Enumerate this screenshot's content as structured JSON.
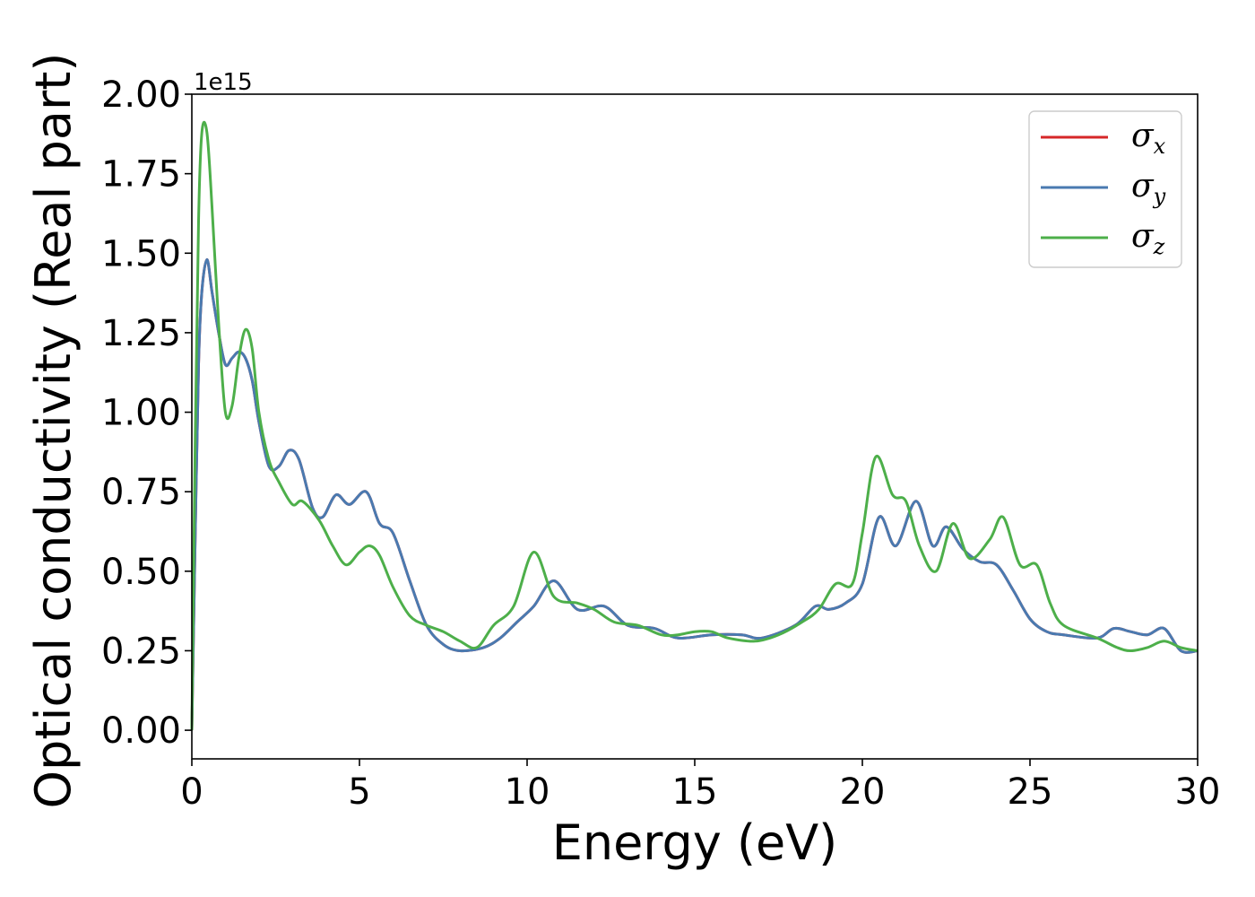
{
  "chart_data": {
    "type": "line",
    "xlabel": "Energy (eV)",
    "ylabel": "Optical conductivity (Real part)",
    "y_offset_label": "1e15",
    "xlim": [
      0,
      30
    ],
    "ylim": [
      -0.09,
      2.0
    ],
    "y_scale_note": "values in units of 1e15",
    "xticks": [
      0,
      5,
      10,
      15,
      20,
      25,
      30
    ],
    "xtick_labels": [
      "0",
      "5",
      "10",
      "15",
      "20",
      "25",
      "30"
    ],
    "yticks": [
      0.0,
      0.25,
      0.5,
      0.75,
      1.0,
      1.25,
      1.5,
      1.75,
      2.0
    ],
    "ytick_labels": [
      "0.00",
      "0.25",
      "0.50",
      "0.75",
      "1.00",
      "1.25",
      "1.50",
      "1.75",
      "2.00"
    ],
    "grid": false,
    "legend_position": "top-right",
    "series": [
      {
        "name": "σ",
        "subscript": "x",
        "color": "#d62728",
        "x": [
          0,
          0.1,
          0.2,
          0.3,
          0.45,
          0.6,
          0.8,
          1.0,
          1.2,
          1.4,
          1.6,
          1.8,
          2.0,
          2.3,
          2.6,
          2.9,
          3.2,
          3.6,
          3.9,
          4.3,
          4.7,
          5.2,
          5.6,
          6.0,
          6.5,
          7.0,
          7.5,
          8.0,
          8.7,
          9.2,
          9.7,
          10.2,
          10.8,
          11.5,
          12.3,
          13.0,
          13.8,
          14.5,
          15.5,
          16.4,
          17.0,
          18.0,
          18.6,
          19.0,
          19.5,
          20.0,
          20.5,
          21.0,
          21.6,
          22.1,
          22.5,
          23.0,
          23.5,
          24.0,
          24.5,
          25.0,
          25.5,
          26.0,
          27.0,
          27.5,
          28.0,
          28.5,
          29.0,
          29.5,
          30.0
        ],
        "y": [
          0.0,
          0.6,
          1.15,
          1.38,
          1.48,
          1.38,
          1.25,
          1.15,
          1.17,
          1.19,
          1.17,
          1.1,
          0.97,
          0.83,
          0.83,
          0.88,
          0.85,
          0.7,
          0.67,
          0.74,
          0.71,
          0.75,
          0.65,
          0.62,
          0.47,
          0.33,
          0.27,
          0.25,
          0.26,
          0.29,
          0.34,
          0.39,
          0.47,
          0.38,
          0.39,
          0.33,
          0.32,
          0.29,
          0.3,
          0.3,
          0.29,
          0.33,
          0.39,
          0.38,
          0.4,
          0.46,
          0.67,
          0.58,
          0.72,
          0.58,
          0.64,
          0.57,
          0.53,
          0.52,
          0.44,
          0.35,
          0.31,
          0.3,
          0.29,
          0.32,
          0.31,
          0.3,
          0.32,
          0.25,
          0.25
        ]
      },
      {
        "name": "σ",
        "subscript": "y",
        "color": "#4a7ab0",
        "x": [
          0,
          0.1,
          0.2,
          0.3,
          0.45,
          0.6,
          0.8,
          1.0,
          1.2,
          1.4,
          1.6,
          1.8,
          2.0,
          2.3,
          2.6,
          2.9,
          3.2,
          3.6,
          3.9,
          4.3,
          4.7,
          5.2,
          5.6,
          6.0,
          6.5,
          7.0,
          7.5,
          8.0,
          8.7,
          9.2,
          9.7,
          10.2,
          10.8,
          11.5,
          12.3,
          13.0,
          13.8,
          14.5,
          15.5,
          16.4,
          17.0,
          18.0,
          18.6,
          19.0,
          19.5,
          20.0,
          20.5,
          21.0,
          21.6,
          22.1,
          22.5,
          23.0,
          23.5,
          24.0,
          24.5,
          25.0,
          25.5,
          26.0,
          27.0,
          27.5,
          28.0,
          28.5,
          29.0,
          29.5,
          30.0
        ],
        "y": [
          0.0,
          0.6,
          1.15,
          1.38,
          1.48,
          1.38,
          1.25,
          1.15,
          1.17,
          1.19,
          1.17,
          1.1,
          0.97,
          0.83,
          0.83,
          0.88,
          0.85,
          0.7,
          0.67,
          0.74,
          0.71,
          0.75,
          0.65,
          0.62,
          0.47,
          0.33,
          0.27,
          0.25,
          0.26,
          0.29,
          0.34,
          0.39,
          0.47,
          0.38,
          0.39,
          0.33,
          0.32,
          0.29,
          0.3,
          0.3,
          0.29,
          0.33,
          0.39,
          0.38,
          0.4,
          0.46,
          0.67,
          0.58,
          0.72,
          0.58,
          0.64,
          0.57,
          0.53,
          0.52,
          0.44,
          0.35,
          0.31,
          0.3,
          0.29,
          0.32,
          0.31,
          0.3,
          0.32,
          0.25,
          0.25
        ]
      },
      {
        "name": "σ",
        "subscript": "z",
        "color": "#4daf4a",
        "x": [
          0,
          0.1,
          0.2,
          0.3,
          0.45,
          0.6,
          0.8,
          1.0,
          1.2,
          1.4,
          1.6,
          1.8,
          2.0,
          2.3,
          2.6,
          3.0,
          3.3,
          3.8,
          4.2,
          4.6,
          5.0,
          5.3,
          5.6,
          6.0,
          6.5,
          7.0,
          7.5,
          8.0,
          8.5,
          9.0,
          9.6,
          10.2,
          10.8,
          11.5,
          12.0,
          12.6,
          13.3,
          14.0,
          14.5,
          15.0,
          15.5,
          16.0,
          16.8,
          17.5,
          18.2,
          18.7,
          19.2,
          19.7,
          20.0,
          20.4,
          20.9,
          21.3,
          21.7,
          22.2,
          22.7,
          23.2,
          23.8,
          24.2,
          24.7,
          25.2,
          25.6,
          26.0,
          27.0,
          27.6,
          28.0,
          28.5,
          29.0,
          29.5,
          30.0
        ],
        "y": [
          0.0,
          0.9,
          1.6,
          1.88,
          1.88,
          1.65,
          1.28,
          1.0,
          1.02,
          1.17,
          1.26,
          1.2,
          1.0,
          0.85,
          0.78,
          0.71,
          0.72,
          0.66,
          0.58,
          0.52,
          0.56,
          0.58,
          0.55,
          0.45,
          0.36,
          0.33,
          0.31,
          0.28,
          0.26,
          0.33,
          0.39,
          0.56,
          0.42,
          0.4,
          0.38,
          0.34,
          0.33,
          0.3,
          0.3,
          0.31,
          0.31,
          0.29,
          0.28,
          0.3,
          0.34,
          0.38,
          0.46,
          0.46,
          0.62,
          0.86,
          0.74,
          0.72,
          0.58,
          0.5,
          0.65,
          0.54,
          0.6,
          0.67,
          0.52,
          0.52,
          0.4,
          0.33,
          0.29,
          0.26,
          0.25,
          0.26,
          0.28,
          0.26,
          0.25
        ]
      }
    ]
  }
}
